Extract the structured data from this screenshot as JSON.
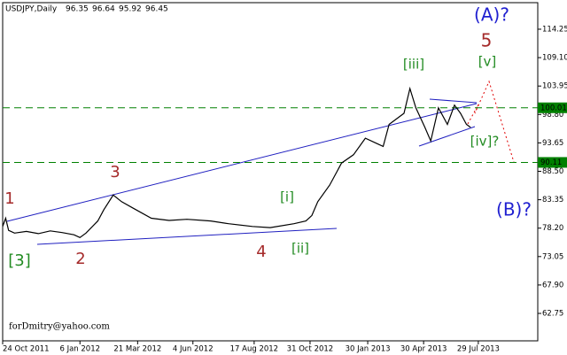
{
  "chart_data": {
    "type": "line",
    "title": "USDJPY,Daily",
    "ohlc": [
      96.35,
      96.64,
      95.92,
      96.45
    ],
    "x": [
      0,
      0.5,
      1,
      2,
      4,
      6,
      8,
      10,
      12,
      13,
      14,
      16,
      17,
      18.6,
      20,
      22,
      25,
      28,
      31,
      35,
      38,
      42,
      45,
      49,
      51,
      52,
      53,
      55,
      57,
      59,
      61,
      63,
      64,
      65,
      67.5,
      68.5,
      69.5,
      71,
      72,
      73.3,
      74.8,
      76,
      77,
      78,
      78.7
    ],
    "series": [
      {
        "name": "USDJPY",
        "color": "#000000",
        "values": [
          78.5,
          80.0,
          77.8,
          77.3,
          77.6,
          77.2,
          77.7,
          77.4,
          77.0,
          76.5,
          77.3,
          79.5,
          81.5,
          84.2,
          83.0,
          81.8,
          80.0,
          79.6,
          79.8,
          79.5,
          79.0,
          78.5,
          78.3,
          79.0,
          79.5,
          80.5,
          83.0,
          86.0,
          90.0,
          91.5,
          94.5,
          93.5,
          93.0,
          97.0,
          99.0,
          103.5,
          100.0,
          96.5,
          94.0,
          100.0,
          97.0,
          100.5,
          99.0,
          97.0,
          96.45
        ]
      }
    ],
    "xlim": [
      0,
      90
    ],
    "ylim": [
      57.78,
      119.06
    ],
    "xticks": [
      {
        "value": 0,
        "label": "24 Oct 2011"
      },
      {
        "value": 13,
        "label": "6 Jan 2012"
      },
      {
        "value": 22.7,
        "label": "21 Mar 2012"
      },
      {
        "value": 32,
        "label": "4 Jun 2012"
      },
      {
        "value": 42.3,
        "label": "17 Aug 2012"
      },
      {
        "value": 51.7,
        "label": "31 Oct 2012"
      },
      {
        "value": 61.4,
        "label": "30 Jan 2013"
      },
      {
        "value": 70.8,
        "label": "30 Apr 2013"
      },
      {
        "value": 80,
        "label": "29 Jul 2013"
      }
    ],
    "yticks": [
      114.25,
      {
        "value": 109.1,
        "label": "109.10"
      },
      103.95,
      {
        "value": 98.8,
        "label": "98.80"
      },
      93.65,
      {
        "value": 88.5,
        "label": "88.50"
      },
      83.35,
      {
        "value": 78.2,
        "label": "78.20"
      },
      73.05,
      {
        "value": 67.9,
        "label": "67.90"
      },
      62.75
    ],
    "hlines": [
      100.01,
      90.11
    ],
    "hline_color": "#008000",
    "grid": false,
    "annotations": [
      {
        "text": "(A)?",
        "color": "#1f1fd0"
      },
      {
        "text": "5",
        "color": "#a52a2a"
      },
      {
        "text": "[v]",
        "color": "#228b22"
      },
      {
        "text": "[iii]",
        "color": "#228b22"
      },
      {
        "text": "[iv]?",
        "color": "#228b22"
      },
      {
        "text": "1",
        "color": "#a52a2a"
      },
      {
        "text": "3",
        "color": "#a52a2a"
      },
      {
        "text": "[3]",
        "color": "#228b22"
      },
      {
        "text": "2",
        "color": "#a52a2a"
      },
      {
        "text": "4",
        "color": "#a52a2a"
      },
      {
        "text": "[i]",
        "color": "#228b22"
      },
      {
        "text": "[ii]",
        "color": "#228b22"
      },
      {
        "text": "(B)?",
        "color": "#1f1fd0"
      },
      {
        "text": "forDmitry@yahoo.com",
        "color": "#000000"
      }
    ]
  }
}
